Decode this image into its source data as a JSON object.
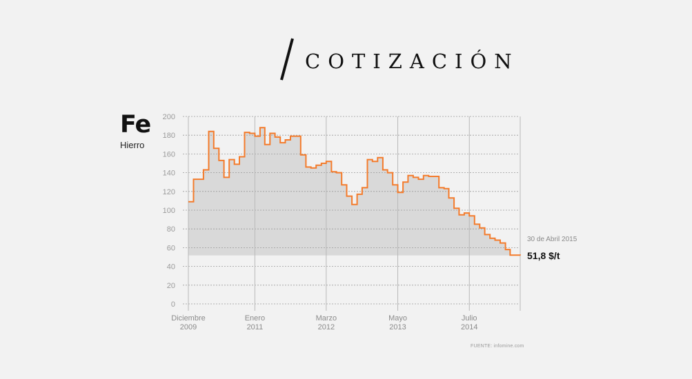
{
  "header": {
    "title": "COTIZACIÓN"
  },
  "element": {
    "symbol": "Fe",
    "name": "Hierro"
  },
  "annotation": {
    "date": "30 de Abril 2015",
    "value": "51,8 $/t"
  },
  "source": "FUENTE: infomine.com",
  "colors": {
    "background": "#f2f2f2",
    "line": "#f47b2b",
    "area": "#d9d9d9",
    "grid": "#9a9a9a",
    "text": "#111111"
  },
  "chart_data": {
    "type": "area",
    "title": "",
    "xlabel": "",
    "ylabel": "",
    "ylim": [
      0,
      200
    ],
    "yticks": [
      0,
      20,
      40,
      60,
      80,
      100,
      120,
      140,
      160,
      180,
      200
    ],
    "xticks": [
      {
        "date": "2009-12",
        "label1": "Diciembre",
        "label2": "2009"
      },
      {
        "date": "2011-01",
        "label1": "Enero",
        "label2": "2011"
      },
      {
        "date": "2012-03",
        "label1": "Marzo",
        "label2": "2012"
      },
      {
        "date": "2013-05",
        "label1": "Mayo",
        "label2": "2013"
      },
      {
        "date": "2014-07",
        "label1": "Julio",
        "label2": "2014"
      }
    ],
    "xlim": [
      "2009-12",
      "2015-04-30"
    ],
    "grid": true,
    "series": [
      {
        "step": true,
        "points": [
          [
            "2009-12",
            109
          ],
          [
            "2010-01",
            133
          ],
          [
            "2010-03",
            143
          ],
          [
            "2010-04",
            184
          ],
          [
            "2010-05",
            166
          ],
          [
            "2010-06",
            153
          ],
          [
            "2010-07",
            135
          ],
          [
            "2010-08",
            154
          ],
          [
            "2010-09",
            149
          ],
          [
            "2010-10",
            157
          ],
          [
            "2010-11",
            183
          ],
          [
            "2010-12",
            182
          ],
          [
            "2011-01",
            179
          ],
          [
            "2011-02",
            188
          ],
          [
            "2011-03",
            170
          ],
          [
            "2011-04",
            182
          ],
          [
            "2011-05",
            178
          ],
          [
            "2011-06",
            172
          ],
          [
            "2011-07",
            175
          ],
          [
            "2011-08",
            179
          ],
          [
            "2011-10",
            159
          ],
          [
            "2011-11",
            146
          ],
          [
            "2011-12",
            145
          ],
          [
            "2012-01",
            148
          ],
          [
            "2012-02",
            150
          ],
          [
            "2012-03",
            152
          ],
          [
            "2012-04",
            141
          ],
          [
            "2012-05",
            140
          ],
          [
            "2012-06",
            127
          ],
          [
            "2012-07",
            115
          ],
          [
            "2012-08",
            106
          ],
          [
            "2012-09",
            117
          ],
          [
            "2012-10",
            124
          ],
          [
            "2012-11",
            154
          ],
          [
            "2012-12",
            152
          ],
          [
            "2013-01",
            156
          ],
          [
            "2013-02",
            143
          ],
          [
            "2013-03",
            140
          ],
          [
            "2013-04",
            127
          ],
          [
            "2013-05",
            119
          ],
          [
            "2013-06",
            130
          ],
          [
            "2013-07",
            137
          ],
          [
            "2013-08",
            135
          ],
          [
            "2013-09",
            133
          ],
          [
            "2013-10",
            137
          ],
          [
            "2013-11",
            136
          ],
          [
            "2014-01",
            124
          ],
          [
            "2014-02",
            123
          ],
          [
            "2014-03",
            113
          ],
          [
            "2014-04",
            102
          ],
          [
            "2014-05",
            95
          ],
          [
            "2014-06",
            97
          ],
          [
            "2014-07",
            94
          ],
          [
            "2014-08",
            85
          ],
          [
            "2014-09",
            81
          ],
          [
            "2014-10",
            74
          ],
          [
            "2014-11",
            70
          ],
          [
            "2014-12",
            68
          ],
          [
            "2015-01",
            65
          ],
          [
            "2015-02",
            58
          ],
          [
            "2015-03",
            52
          ],
          [
            "2015-04-30",
            51.8
          ]
        ]
      }
    ]
  }
}
